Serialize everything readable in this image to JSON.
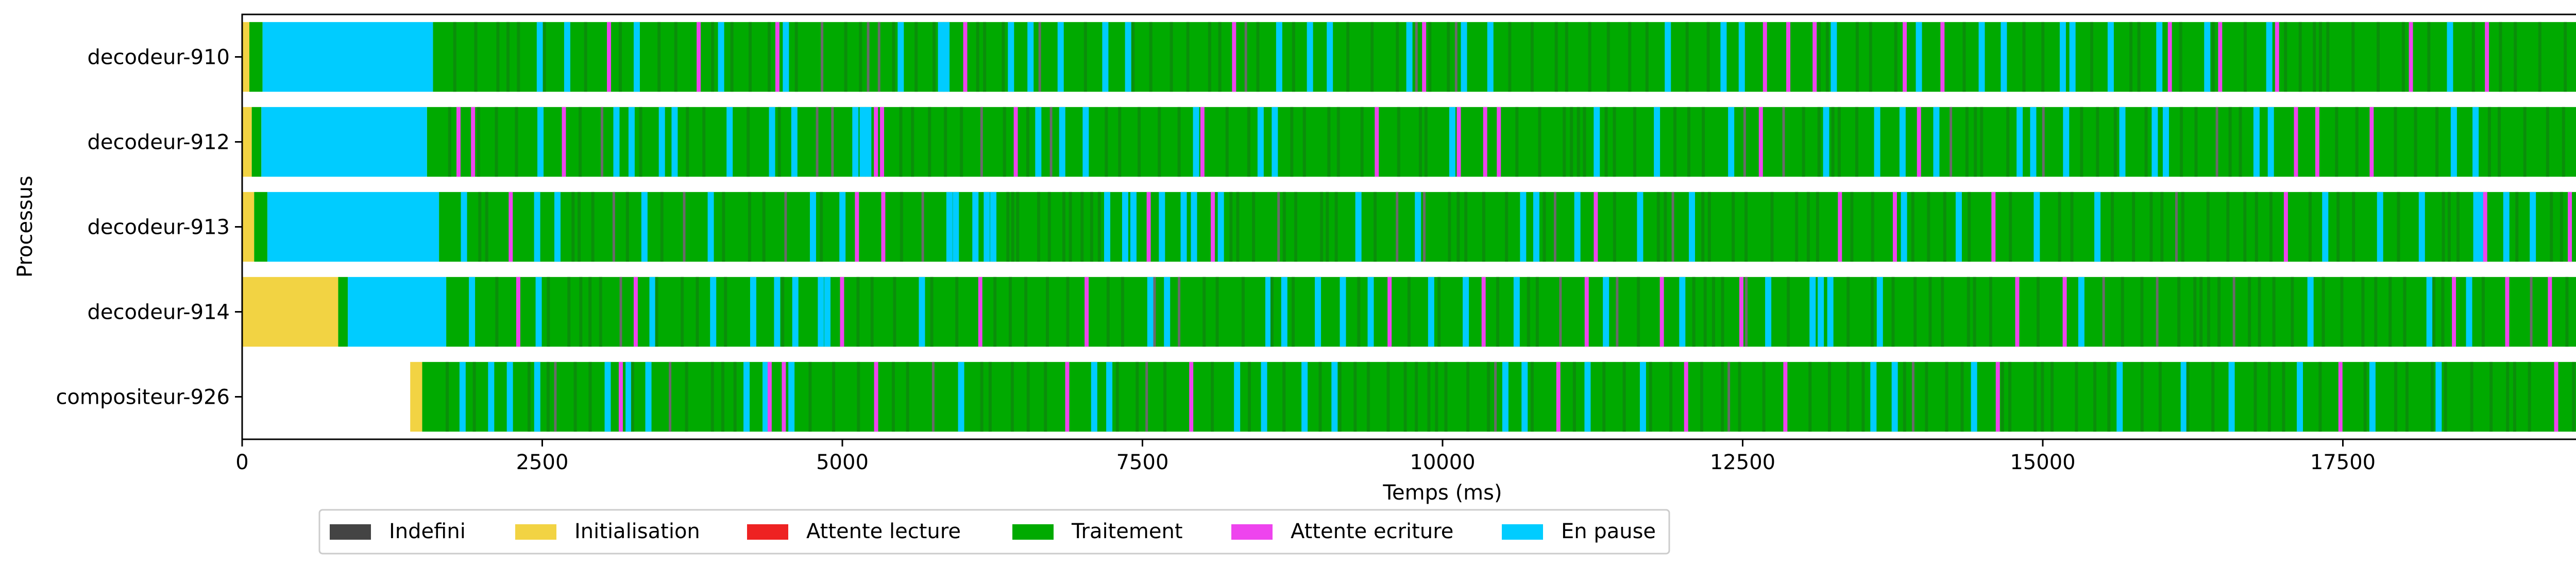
{
  "chart_data": {
    "type": "gantt",
    "xlabel": "Temps (ms)",
    "ylabel": "Processus",
    "xlim": [
      0,
      20000
    ],
    "xticks": [
      "0",
      "2500",
      "5000",
      "7500",
      "10000",
      "12500",
      "15000",
      "17500",
      "20000"
    ],
    "processes": [
      "decodeur-910",
      "decodeur-912",
      "decodeur-913",
      "decodeur-914",
      "compositeur-926"
    ],
    "states": [
      {
        "name": "Indefini",
        "color": "#444444"
      },
      {
        "name": "Initialisation",
        "color": "#f2d343"
      },
      {
        "name": "Attente lecture",
        "color": "#ee2222"
      },
      {
        "name": "Traitement",
        "color": "#00aa00"
      },
      {
        "name": "Attente ecriture",
        "color": "#ee44ee"
      },
      {
        "name": "En pause",
        "color": "#00ccff"
      }
    ],
    "timelines": [
      {
        "process": "decodeur-910",
        "intervals": [
          {
            "state": "Initialisation",
            "start": 0,
            "end": 60
          },
          {
            "state": "Traitement",
            "start": 60,
            "end": 170
          },
          {
            "state": "En pause",
            "start": 170,
            "end": 1590
          },
          {
            "state": "Traitement",
            "start": 1590,
            "end": 20000
          }
        ]
      },
      {
        "process": "decodeur-912",
        "intervals": [
          {
            "state": "Initialisation",
            "start": 0,
            "end": 80
          },
          {
            "state": "Traitement",
            "start": 80,
            "end": 160
          },
          {
            "state": "En pause",
            "start": 160,
            "end": 1540
          },
          {
            "state": "Traitement",
            "start": 1540,
            "end": 20000
          }
        ]
      },
      {
        "process": "decodeur-913",
        "intervals": [
          {
            "state": "Initialisation",
            "start": 0,
            "end": 100
          },
          {
            "state": "Traitement",
            "start": 100,
            "end": 210
          },
          {
            "state": "En pause",
            "start": 210,
            "end": 1640
          },
          {
            "state": "Traitement",
            "start": 1640,
            "end": 20000
          }
        ]
      },
      {
        "process": "decodeur-914",
        "intervals": [
          {
            "state": "Initialisation",
            "start": 0,
            "end": 800
          },
          {
            "state": "Traitement",
            "start": 800,
            "end": 880
          },
          {
            "state": "En pause",
            "start": 880,
            "end": 1700
          },
          {
            "state": "Traitement",
            "start": 1700,
            "end": 20000
          }
        ]
      },
      {
        "process": "compositeur-926",
        "intervals": [
          {
            "state": "Initialisation",
            "start": 1400,
            "end": 1500
          },
          {
            "state": "Traitement",
            "start": 1500,
            "end": 20000
          }
        ]
      }
    ],
    "grid": false,
    "legend_position": "bottom"
  }
}
